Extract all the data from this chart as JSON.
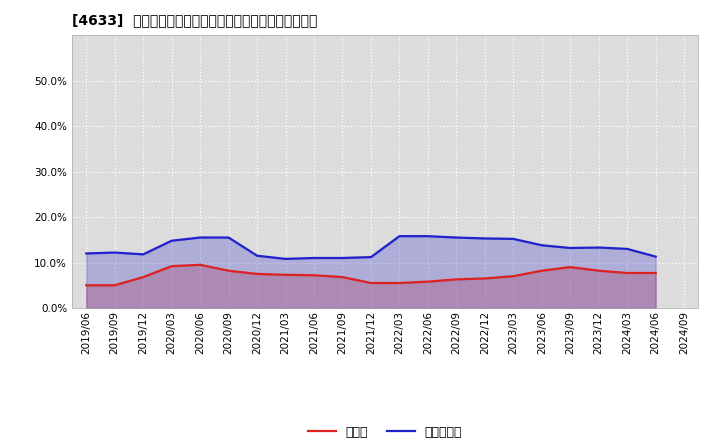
{
  "title": "[4633]  現預金、有利子負債の総資産に対する比率の推移",
  "x_labels": [
    "2019/06",
    "2019/09",
    "2019/12",
    "2020/03",
    "2020/06",
    "2020/09",
    "2020/12",
    "2021/03",
    "2021/06",
    "2021/09",
    "2021/12",
    "2022/03",
    "2022/06",
    "2022/09",
    "2022/12",
    "2023/03",
    "2023/06",
    "2023/09",
    "2023/12",
    "2024/03",
    "2024/06",
    "2024/09"
  ],
  "cash_ratio": [
    0.05,
    0.05,
    0.068,
    0.092,
    0.095,
    0.082,
    0.075,
    0.073,
    0.072,
    0.068,
    0.055,
    0.055,
    0.058,
    0.063,
    0.065,
    0.07,
    0.082,
    0.09,
    0.082,
    0.077,
    0.077,
    null
  ],
  "debt_ratio": [
    0.12,
    0.122,
    0.118,
    0.148,
    0.155,
    0.155,
    0.115,
    0.108,
    0.11,
    0.11,
    0.112,
    0.158,
    0.158,
    0.155,
    0.153,
    0.152,
    0.138,
    0.132,
    0.133,
    0.13,
    0.113,
    null
  ],
  "cash_color": "#dd2222",
  "debt_color": "#2222cc",
  "bg_color": "#ffffff",
  "plot_bg_color": "#dcdcdc",
  "grid_color": "#ffffff",
  "legend_cash": "現預金",
  "legend_debt": "有利子負債",
  "ylim": [
    0.0,
    0.6
  ],
  "yticks": [
    0.0,
    0.1,
    0.2,
    0.3,
    0.4,
    0.5
  ],
  "title_fontsize": 12,
  "tick_fontsize": 7.5,
  "legend_fontsize": 9
}
